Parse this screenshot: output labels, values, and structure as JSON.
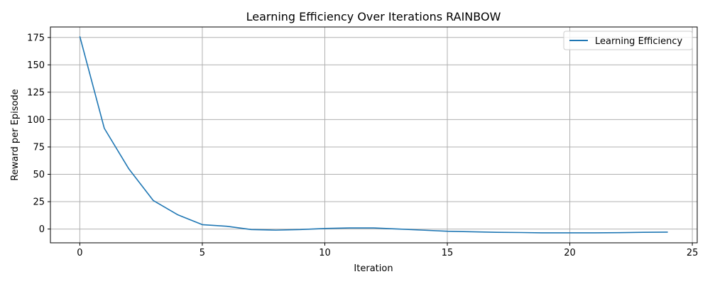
{
  "chart_data": {
    "type": "line",
    "title": "Learning Efficiency Over Iterations RAINBOW",
    "xlabel": "Iteration",
    "ylabel": "Reward per Episode",
    "xlim": [
      -1.2,
      25.2
    ],
    "ylim": [
      -12.6,
      184.6
    ],
    "xticks": [
      0,
      5,
      10,
      15,
      20,
      25
    ],
    "yticks": [
      0,
      25,
      50,
      75,
      100,
      125,
      150,
      175
    ],
    "grid": true,
    "legend_position": "top-right",
    "series": [
      {
        "name": "Learning Efficiency",
        "color": "#1f77b4",
        "x": [
          0,
          1,
          2,
          3,
          4,
          5,
          6,
          7,
          8,
          9,
          10,
          11,
          12,
          13,
          14,
          15,
          16,
          17,
          18,
          19,
          20,
          21,
          22,
          23,
          24
        ],
        "values": [
          176,
          92,
          55,
          26,
          13,
          4,
          2.5,
          -0.5,
          -1,
          -0.5,
          0.5,
          1,
          1,
          0,
          -1,
          -2,
          -2.5,
          -3,
          -3.2,
          -3.5,
          -3.5,
          -3.5,
          -3.3,
          -3,
          -2.8
        ]
      }
    ]
  }
}
